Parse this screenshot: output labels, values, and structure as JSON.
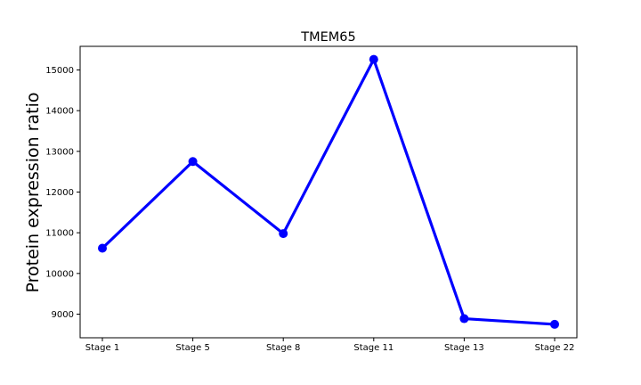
{
  "chart_data": {
    "type": "line",
    "title": "TMEM65",
    "xlabel": "",
    "ylabel": "Protein expression ratio",
    "categories": [
      "Stage 1",
      "Stage 5",
      "Stage 8",
      "Stage 11",
      "Stage 13",
      "Stage 22"
    ],
    "series": [
      {
        "values": [
          10620,
          12750,
          10980,
          15260,
          8890,
          8750
        ]
      }
    ],
    "ylim": [
      8420,
      15580
    ],
    "yticks": [
      9000,
      10000,
      11000,
      12000,
      13000,
      14000,
      15000
    ],
    "ytick_labels": [
      "9000",
      "10000",
      "11000",
      "12000",
      "13000",
      "14000",
      "15000"
    ],
    "grid": false,
    "colors": {
      "line": "#0000ff",
      "axes": "#000000",
      "background": "#ffffff"
    }
  }
}
